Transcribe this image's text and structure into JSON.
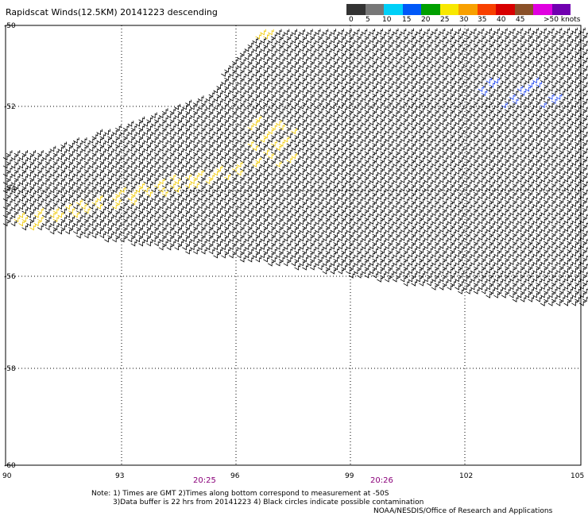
{
  "title": "Rapidscat Winds(12.5KM) 20141223 descending",
  "legend": {
    "labels": [
      "0",
      "5",
      "10",
      "15",
      "20",
      "25",
      "30",
      "35",
      "40",
      "45",
      ">50 knots"
    ],
    "colors": [
      "#333333",
      "#777777",
      "#00d0f8",
      "#0058f8",
      "#00a000",
      "#f8e800",
      "#f8a000",
      "#f84000",
      "#d80000",
      "#8a5028",
      "#e000e0",
      "#7000b0"
    ]
  },
  "axes": {
    "lat_labels": [
      "-50",
      "-52",
      "-54",
      "-56",
      "-58",
      "-60"
    ],
    "lon_labels": [
      "90",
      "93",
      "96",
      "99",
      "102",
      "105"
    ]
  },
  "times": [
    "20:25",
    "20:26"
  ],
  "notes": [
    "Note: 1) Times are GMT 2)Times along bottom correspond to measurement at -50S",
    "3)Data buffer is 22 hrs from 20141223 4) Black circles indicate possible contamination"
  ],
  "credit": "NOAA/NESDIS/Office of Research and Applications"
}
